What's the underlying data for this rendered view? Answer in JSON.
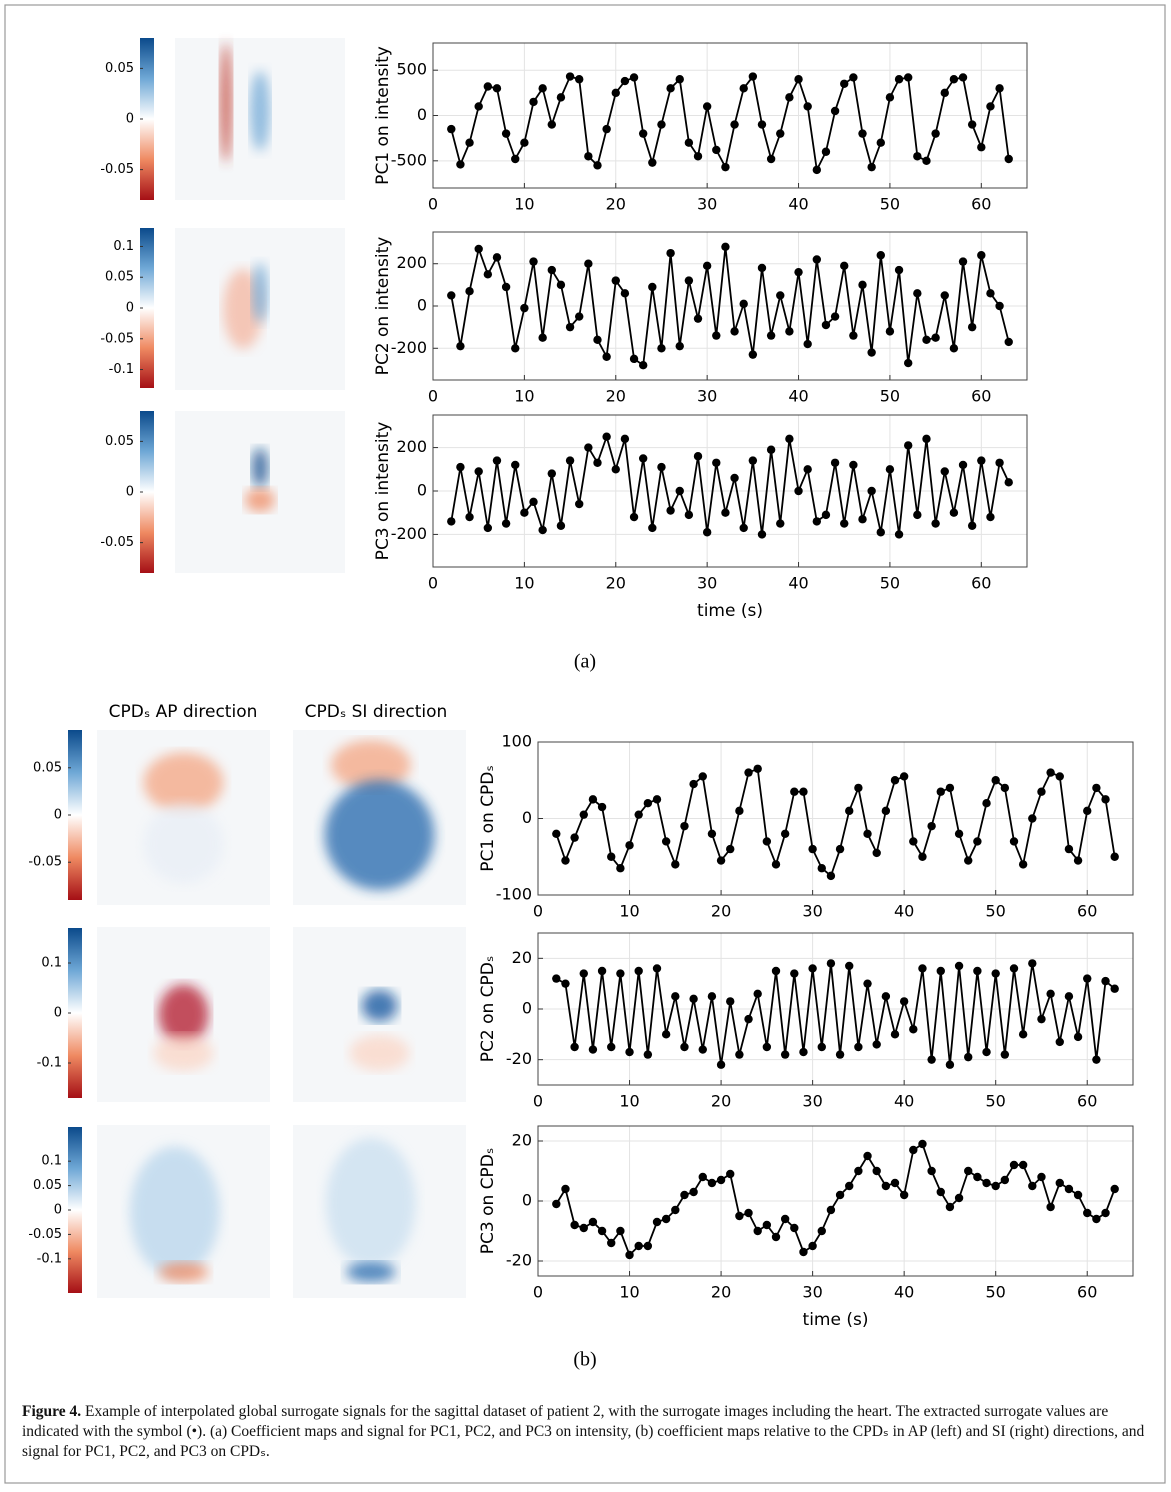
{
  "chart_data": [
    {
      "type": "line",
      "y_label": "PC1 on intensity",
      "color": "#000000",
      "marker": "circle",
      "grid": true,
      "x": [
        2,
        3,
        4,
        5,
        6,
        7,
        8,
        9,
        10,
        11,
        12,
        13,
        14,
        15,
        16,
        17,
        18,
        19,
        20,
        21,
        22,
        23,
        24,
        25,
        26,
        27,
        28,
        29,
        30,
        31,
        32,
        33,
        34,
        35,
        36,
        37,
        38,
        39,
        40,
        41,
        42,
        43,
        44,
        45,
        46,
        47,
        48,
        49,
        50,
        51,
        52,
        53,
        54,
        55,
        56,
        57,
        58,
        59,
        60,
        61,
        62,
        63
      ],
      "values": [
        -150,
        -540,
        -300,
        100,
        320,
        300,
        -200,
        -480,
        -300,
        150,
        300,
        -100,
        200,
        430,
        400,
        -450,
        -550,
        -150,
        250,
        380,
        420,
        -200,
        -520,
        -100,
        300,
        400,
        -300,
        -450,
        100,
        -380,
        -570,
        -100,
        300,
        430,
        -100,
        -480,
        -200,
        200,
        400,
        100,
        -600,
        -400,
        50,
        350,
        420,
        -200,
        -570,
        -300,
        200,
        400,
        420,
        -450,
        -500,
        -200,
        250,
        400,
        420,
        -100,
        -350,
        100,
        300,
        -480
      ],
      "xlim": [
        0,
        65
      ],
      "xticks": [
        0,
        10,
        20,
        30,
        40,
        50,
        60
      ],
      "ylim": [
        -800,
        800
      ],
      "yticks": [
        -500,
        0,
        500
      ]
    },
    {
      "type": "line",
      "y_label": "PC2 on intensity",
      "color": "#000000",
      "marker": "circle",
      "grid": true,
      "x": [
        2,
        3,
        4,
        5,
        6,
        7,
        8,
        9,
        10,
        11,
        12,
        13,
        14,
        15,
        16,
        17,
        18,
        19,
        20,
        21,
        22,
        23,
        24,
        25,
        26,
        27,
        28,
        29,
        30,
        31,
        32,
        33,
        34,
        35,
        36,
        37,
        38,
        39,
        40,
        41,
        42,
        43,
        44,
        45,
        46,
        47,
        48,
        49,
        50,
        51,
        52,
        53,
        54,
        55,
        56,
        57,
        58,
        59,
        60,
        61,
        62,
        63
      ],
      "values": [
        50,
        -190,
        70,
        270,
        150,
        230,
        90,
        -200,
        -10,
        210,
        -150,
        170,
        100,
        -100,
        -50,
        200,
        -160,
        -240,
        120,
        60,
        -250,
        -280,
        90,
        -200,
        250,
        -190,
        120,
        -60,
        190,
        -140,
        280,
        -120,
        10,
        -230,
        180,
        -140,
        50,
        -120,
        160,
        -180,
        220,
        -90,
        -50,
        190,
        -140,
        100,
        -220,
        240,
        -120,
        170,
        -270,
        60,
        -160,
        -150,
        50,
        -200,
        210,
        -100,
        240,
        60,
        0,
        -170
      ],
      "xlim": [
        0,
        65
      ],
      "xticks": [
        0,
        10,
        20,
        30,
        40,
        50,
        60
      ],
      "ylim": [
        -350,
        350
      ],
      "yticks": [
        -200,
        0,
        200
      ]
    },
    {
      "type": "line",
      "y_label": "PC3 on intensity",
      "x_label": "time (s)",
      "color": "#000000",
      "marker": "circle",
      "grid": true,
      "x": [
        2,
        3,
        4,
        5,
        6,
        7,
        8,
        9,
        10,
        11,
        12,
        13,
        14,
        15,
        16,
        17,
        18,
        19,
        20,
        21,
        22,
        23,
        24,
        25,
        26,
        27,
        28,
        29,
        30,
        31,
        32,
        33,
        34,
        35,
        36,
        37,
        38,
        39,
        40,
        41,
        42,
        43,
        44,
        45,
        46,
        47,
        48,
        49,
        50,
        51,
        52,
        53,
        54,
        55,
        56,
        57,
        58,
        59,
        60,
        61,
        62,
        63
      ],
      "values": [
        -140,
        110,
        -120,
        90,
        -170,
        140,
        -150,
        120,
        -100,
        -50,
        -180,
        80,
        -160,
        140,
        -60,
        200,
        130,
        250,
        100,
        240,
        -120,
        150,
        -170,
        110,
        -90,
        0,
        -110,
        160,
        -190,
        130,
        -100,
        60,
        -170,
        140,
        -200,
        190,
        -150,
        240,
        0,
        100,
        -140,
        -110,
        130,
        -150,
        120,
        -130,
        0,
        -190,
        100,
        -200,
        210,
        -110,
        240,
        -150,
        90,
        -100,
        120,
        -160,
        140,
        -120,
        130,
        40
      ],
      "xlim": [
        0,
        65
      ],
      "xticks": [
        0,
        10,
        20,
        30,
        40,
        50,
        60
      ],
      "ylim": [
        -350,
        350
      ],
      "yticks": [
        -200,
        0,
        200
      ]
    },
    {
      "type": "line",
      "y_label": "PC1 on CPDₛ",
      "color": "#000000",
      "marker": "circle",
      "grid": true,
      "x": [
        2,
        3,
        4,
        5,
        6,
        7,
        8,
        9,
        10,
        11,
        12,
        13,
        14,
        15,
        16,
        17,
        18,
        19,
        20,
        21,
        22,
        23,
        24,
        25,
        26,
        27,
        28,
        29,
        30,
        31,
        32,
        33,
        34,
        35,
        36,
        37,
        38,
        39,
        40,
        41,
        42,
        43,
        44,
        45,
        46,
        47,
        48,
        49,
        50,
        51,
        52,
        53,
        54,
        55,
        56,
        57,
        58,
        59,
        60,
        61,
        62,
        63
      ],
      "values": [
        -20,
        -55,
        -25,
        5,
        25,
        15,
        -50,
        -65,
        -35,
        5,
        20,
        25,
        -30,
        -60,
        -10,
        45,
        55,
        -20,
        -55,
        -40,
        10,
        60,
        65,
        -30,
        -60,
        -20,
        35,
        35,
        -40,
        -65,
        -75,
        -40,
        10,
        40,
        -20,
        -45,
        10,
        50,
        55,
        -30,
        -50,
        -10,
        35,
        40,
        -20,
        -55,
        -30,
        20,
        50,
        40,
        -30,
        -60,
        0,
        35,
        60,
        55,
        -40,
        -55,
        10,
        40,
        25,
        -50
      ],
      "xlim": [
        0,
        65
      ],
      "xticks": [
        0,
        10,
        20,
        30,
        40,
        50,
        60
      ],
      "ylim": [
        -100,
        100
      ],
      "yticks": [
        -100,
        0,
        100
      ]
    },
    {
      "type": "line",
      "y_label": "PC2 on CPDₛ",
      "color": "#000000",
      "marker": "circle",
      "grid": true,
      "x": [
        2,
        3,
        4,
        5,
        6,
        7,
        8,
        9,
        10,
        11,
        12,
        13,
        14,
        15,
        16,
        17,
        18,
        19,
        20,
        21,
        22,
        23,
        24,
        25,
        26,
        27,
        28,
        29,
        30,
        31,
        32,
        33,
        34,
        35,
        36,
        37,
        38,
        39,
        40,
        41,
        42,
        43,
        44,
        45,
        46,
        47,
        48,
        49,
        50,
        51,
        52,
        53,
        54,
        55,
        56,
        57,
        58,
        59,
        60,
        61,
        62,
        63
      ],
      "values": [
        12,
        10,
        -15,
        14,
        -16,
        15,
        -15,
        14,
        -17,
        15,
        -18,
        16,
        -10,
        5,
        -15,
        4,
        -16,
        5,
        -22,
        3,
        -18,
        -4,
        6,
        -15,
        15,
        -18,
        14,
        -17,
        16,
        -15,
        18,
        -18,
        17,
        -15,
        10,
        -14,
        5,
        -10,
        3,
        -8,
        16,
        -20,
        15,
        -22,
        17,
        -19,
        15,
        -17,
        14,
        -18,
        16,
        -10,
        18,
        -4,
        6,
        -13,
        5,
        -11,
        12,
        -20,
        11,
        8
      ],
      "xlim": [
        0,
        65
      ],
      "xticks": [
        0,
        10,
        20,
        30,
        40,
        50,
        60
      ],
      "ylim": [
        -30,
        30
      ],
      "yticks": [
        -20,
        0,
        20
      ]
    },
    {
      "type": "line",
      "y_label": "PC3 on CPDₛ",
      "x_label": "time (s)",
      "color": "#000000",
      "marker": "circle",
      "grid": true,
      "x": [
        2,
        3,
        4,
        5,
        6,
        7,
        8,
        9,
        10,
        11,
        12,
        13,
        14,
        15,
        16,
        17,
        18,
        19,
        20,
        21,
        22,
        23,
        24,
        25,
        26,
        27,
        28,
        29,
        30,
        31,
        32,
        33,
        34,
        35,
        36,
        37,
        38,
        39,
        40,
        41,
        42,
        43,
        44,
        45,
        46,
        47,
        48,
        49,
        50,
        51,
        52,
        53,
        54,
        55,
        56,
        57,
        58,
        59,
        60,
        61,
        62,
        63
      ],
      "values": [
        -1,
        4,
        -8,
        -9,
        -7,
        -10,
        -14,
        -10,
        -18,
        -15,
        -15,
        -7,
        -6,
        -3,
        2,
        3,
        8,
        6,
        7,
        9,
        -5,
        -4,
        -10,
        -8,
        -12,
        -6,
        -9,
        -17,
        -15,
        -10,
        -3,
        2,
        5,
        10,
        15,
        10,
        5,
        6,
        2,
        17,
        19,
        10,
        3,
        -2,
        1,
        10,
        8,
        6,
        5,
        7,
        12,
        12,
        5,
        8,
        -2,
        6,
        4,
        2,
        -4,
        -6,
        -4,
        4
      ],
      "xlim": [
        0,
        65
      ],
      "xticks": [
        0,
        10,
        20,
        30,
        40,
        50,
        60
      ],
      "ylim": [
        -25,
        25
      ],
      "yticks": [
        -20,
        0,
        20
      ]
    }
  ],
  "colorbars": [
    {
      "lim": [
        -0.08,
        0.08
      ],
      "ticks": [
        0.05,
        0,
        -0.05
      ]
    },
    {
      "lim": [
        -0.13,
        0.13
      ],
      "ticks": [
        0.1,
        0.05,
        0,
        -0.05,
        -0.1
      ]
    },
    {
      "lim": [
        -0.08,
        0.08
      ],
      "ticks": [
        0.05,
        0,
        -0.05
      ]
    },
    {
      "lim": [
        -0.09,
        0.09
      ],
      "ticks": [
        0.05,
        0,
        -0.05
      ]
    },
    {
      "lim": [
        -0.17,
        0.17
      ],
      "ticks": [
        0.1,
        0,
        -0.1
      ]
    },
    {
      "lim": [
        -0.17,
        0.17
      ],
      "ticks": [
        0.1,
        0.05,
        0,
        -0.05,
        -0.1
      ]
    }
  ],
  "figure": {
    "panel_a": "(a)",
    "panel_b": "(b)",
    "column_headers": [
      "CPDₛ AP direction",
      "CPDₛ SI direction"
    ],
    "caption": {
      "label": "Figure 4.",
      "text": "Example of interpolated global surrogate signals for the sagittal dataset of patient 2, with the surrogate images including the heart. The extracted surrogate values are indicated with the symbol (•). (a) Coefficient maps and signal for PC1, PC2, and PC3 on intensity, (b) coefficient maps relative to the CPDₛ in AP (left) and SI (right) directions, and signal for PC1, PC2, and PC3 on CPDₛ."
    }
  }
}
